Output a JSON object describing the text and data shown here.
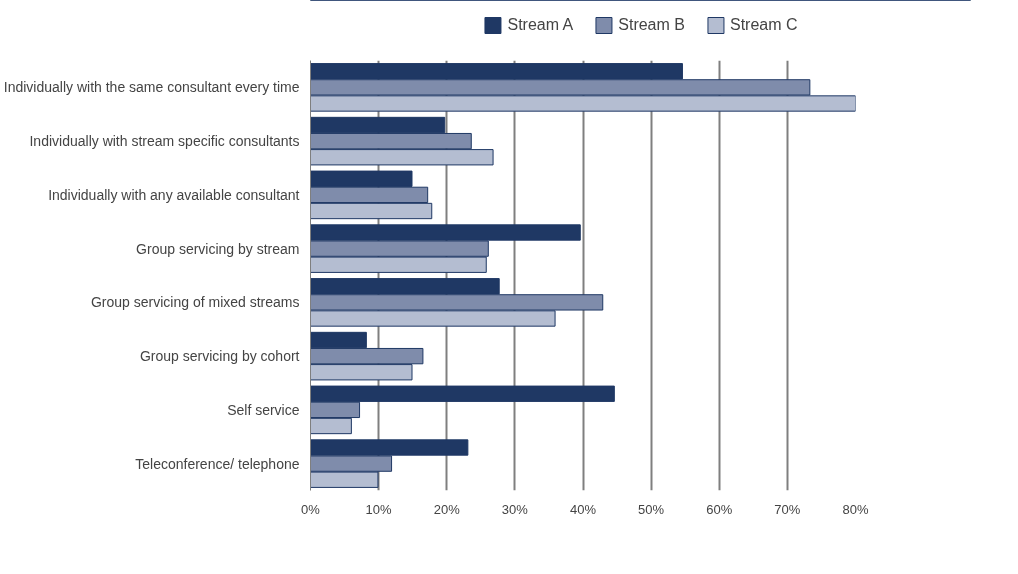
{
  "chart_data": {
    "type": "bar",
    "orientation": "horizontal",
    "categories": [
      "Individually with the same consultant every time",
      "Individually with stream specific consultants",
      "Individually with any available consultant",
      "Group servicing by stream",
      "Group servicing of mixed streams",
      "Group servicing by cohort",
      "Self service",
      "Teleconference/ telephone"
    ],
    "series": [
      {
        "name": "Stream A",
        "color": "#1f3864",
        "values": [
          54.6,
          19.7,
          14.9,
          39.6,
          27.7,
          8.2,
          44.6,
          23.1
        ]
      },
      {
        "name": "Stream B",
        "color": "#7f8cab",
        "values": [
          73.3,
          23.6,
          17.2,
          26.1,
          42.9,
          16.5,
          7.2,
          11.9
        ]
      },
      {
        "name": "Stream C",
        "color": "#b4bdd1",
        "values": [
          80,
          26.8,
          17.8,
          25.8,
          35.9,
          14.9,
          6.0,
          9.9
        ]
      }
    ],
    "xlim": [
      0,
      80
    ],
    "xticks": [
      {
        "value": 0,
        "label": "0%"
      },
      {
        "value": 10,
        "label": "10%"
      },
      {
        "value": 20,
        "label": "20%"
      },
      {
        "value": 30,
        "label": "30%"
      },
      {
        "value": 40,
        "label": "40%"
      },
      {
        "value": 50,
        "label": "50%"
      },
      {
        "value": 60,
        "label": "60%"
      },
      {
        "value": 70,
        "label": "70%"
      },
      {
        "value": 80,
        "label": "80%"
      }
    ],
    "grid": "x",
    "legend": "top"
  }
}
